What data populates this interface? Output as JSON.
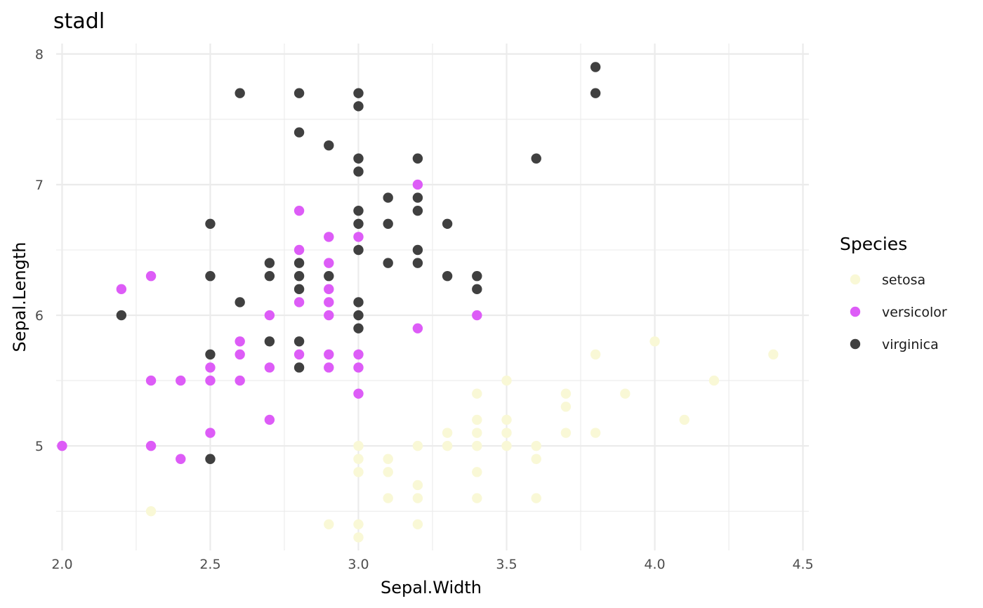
{
  "chart_data": {
    "type": "scatter",
    "title": "stadl",
    "xlabel": "Sepal.Width",
    "ylabel": "Sepal.Length",
    "xlim": [
      1.98,
      4.52
    ],
    "ylim": [
      4.2,
      8.08
    ],
    "x_ticks": [
      2.0,
      2.5,
      3.0,
      3.5,
      4.0,
      4.5
    ],
    "x_tick_labels": [
      "2.0",
      "2.5",
      "3.0",
      "3.5",
      "4.0",
      "4.5"
    ],
    "y_ticks": [
      5,
      6,
      7,
      8
    ],
    "y_tick_labels": [
      "5",
      "6",
      "7",
      "8"
    ],
    "grid": true,
    "legend": {
      "title": "Species",
      "position": "right"
    },
    "series": [
      {
        "name": "setosa",
        "color": "#f9f8d6",
        "points": [
          [
            2.3,
            4.5
          ],
          [
            2.9,
            4.4
          ],
          [
            3.0,
            4.3
          ],
          [
            3.0,
            4.4
          ],
          [
            3.0,
            4.8
          ],
          [
            3.0,
            4.9
          ],
          [
            3.0,
            5.0
          ],
          [
            3.1,
            4.6
          ],
          [
            3.1,
            4.8
          ],
          [
            3.1,
            4.9
          ],
          [
            3.2,
            4.4
          ],
          [
            3.2,
            4.6
          ],
          [
            3.2,
            4.7
          ],
          [
            3.2,
            5.0
          ],
          [
            3.3,
            5.0
          ],
          [
            3.3,
            5.1
          ],
          [
            3.4,
            4.6
          ],
          [
            3.4,
            4.8
          ],
          [
            3.4,
            5.0
          ],
          [
            3.4,
            5.1
          ],
          [
            3.4,
            5.2
          ],
          [
            3.4,
            5.4
          ],
          [
            3.5,
            5.0
          ],
          [
            3.5,
            5.1
          ],
          [
            3.5,
            5.2
          ],
          [
            3.5,
            5.5
          ],
          [
            3.6,
            4.6
          ],
          [
            3.6,
            4.9
          ],
          [
            3.6,
            5.0
          ],
          [
            3.7,
            5.1
          ],
          [
            3.7,
            5.3
          ],
          [
            3.7,
            5.4
          ],
          [
            3.8,
            5.1
          ],
          [
            3.8,
            5.7
          ],
          [
            3.9,
            5.4
          ],
          [
            4.0,
            5.8
          ],
          [
            4.1,
            5.2
          ],
          [
            4.2,
            5.5
          ],
          [
            4.4,
            5.7
          ]
        ]
      },
      {
        "name": "versicolor",
        "color": "#dd5cf7",
        "points": [
          [
            2.0,
            5.0
          ],
          [
            2.2,
            6.2
          ],
          [
            2.3,
            5.0
          ],
          [
            2.3,
            5.5
          ],
          [
            2.3,
            6.3
          ],
          [
            2.4,
            4.9
          ],
          [
            2.4,
            5.5
          ],
          [
            2.5,
            5.1
          ],
          [
            2.5,
            5.5
          ],
          [
            2.5,
            5.6
          ],
          [
            2.6,
            5.5
          ],
          [
            2.6,
            5.7
          ],
          [
            2.6,
            5.8
          ],
          [
            2.7,
            5.2
          ],
          [
            2.7,
            5.6
          ],
          [
            2.7,
            6.0
          ],
          [
            2.8,
            5.7
          ],
          [
            2.8,
            6.1
          ],
          [
            2.8,
            6.5
          ],
          [
            2.8,
            6.8
          ],
          [
            2.9,
            5.6
          ],
          [
            2.9,
            5.7
          ],
          [
            2.9,
            6.0
          ],
          [
            2.9,
            6.1
          ],
          [
            2.9,
            6.2
          ],
          [
            2.9,
            6.4
          ],
          [
            2.9,
            6.6
          ],
          [
            3.0,
            5.4
          ],
          [
            3.0,
            5.6
          ],
          [
            3.0,
            5.7
          ],
          [
            3.0,
            6.6
          ],
          [
            3.2,
            5.9
          ],
          [
            3.2,
            7.0
          ],
          [
            3.4,
            6.0
          ]
        ]
      },
      {
        "name": "virginica",
        "color": "#404040",
        "points": [
          [
            2.2,
            6.0
          ],
          [
            2.5,
            4.9
          ],
          [
            2.5,
            5.7
          ],
          [
            2.5,
            6.3
          ],
          [
            2.5,
            6.7
          ],
          [
            2.6,
            6.1
          ],
          [
            2.6,
            7.7
          ],
          [
            2.7,
            5.8
          ],
          [
            2.7,
            6.3
          ],
          [
            2.7,
            6.4
          ],
          [
            2.8,
            5.6
          ],
          [
            2.8,
            5.8
          ],
          [
            2.8,
            6.2
          ],
          [
            2.8,
            6.3
          ],
          [
            2.8,
            6.4
          ],
          [
            2.8,
            7.4
          ],
          [
            2.8,
            7.7
          ],
          [
            2.9,
            6.3
          ],
          [
            2.9,
            7.3
          ],
          [
            3.0,
            5.9
          ],
          [
            3.0,
            6.0
          ],
          [
            3.0,
            6.1
          ],
          [
            3.0,
            6.5
          ],
          [
            3.0,
            6.7
          ],
          [
            3.0,
            6.8
          ],
          [
            3.0,
            7.1
          ],
          [
            3.0,
            7.2
          ],
          [
            3.0,
            7.6
          ],
          [
            3.0,
            7.7
          ],
          [
            3.1,
            6.4
          ],
          [
            3.1,
            6.7
          ],
          [
            3.1,
            6.9
          ],
          [
            3.2,
            6.4
          ],
          [
            3.2,
            6.5
          ],
          [
            3.2,
            6.8
          ],
          [
            3.2,
            6.9
          ],
          [
            3.2,
            7.2
          ],
          [
            3.3,
            6.3
          ],
          [
            3.3,
            6.7
          ],
          [
            3.4,
            6.2
          ],
          [
            3.4,
            6.3
          ],
          [
            3.6,
            7.2
          ],
          [
            3.8,
            7.7
          ],
          [
            3.8,
            7.9
          ]
        ]
      }
    ]
  }
}
